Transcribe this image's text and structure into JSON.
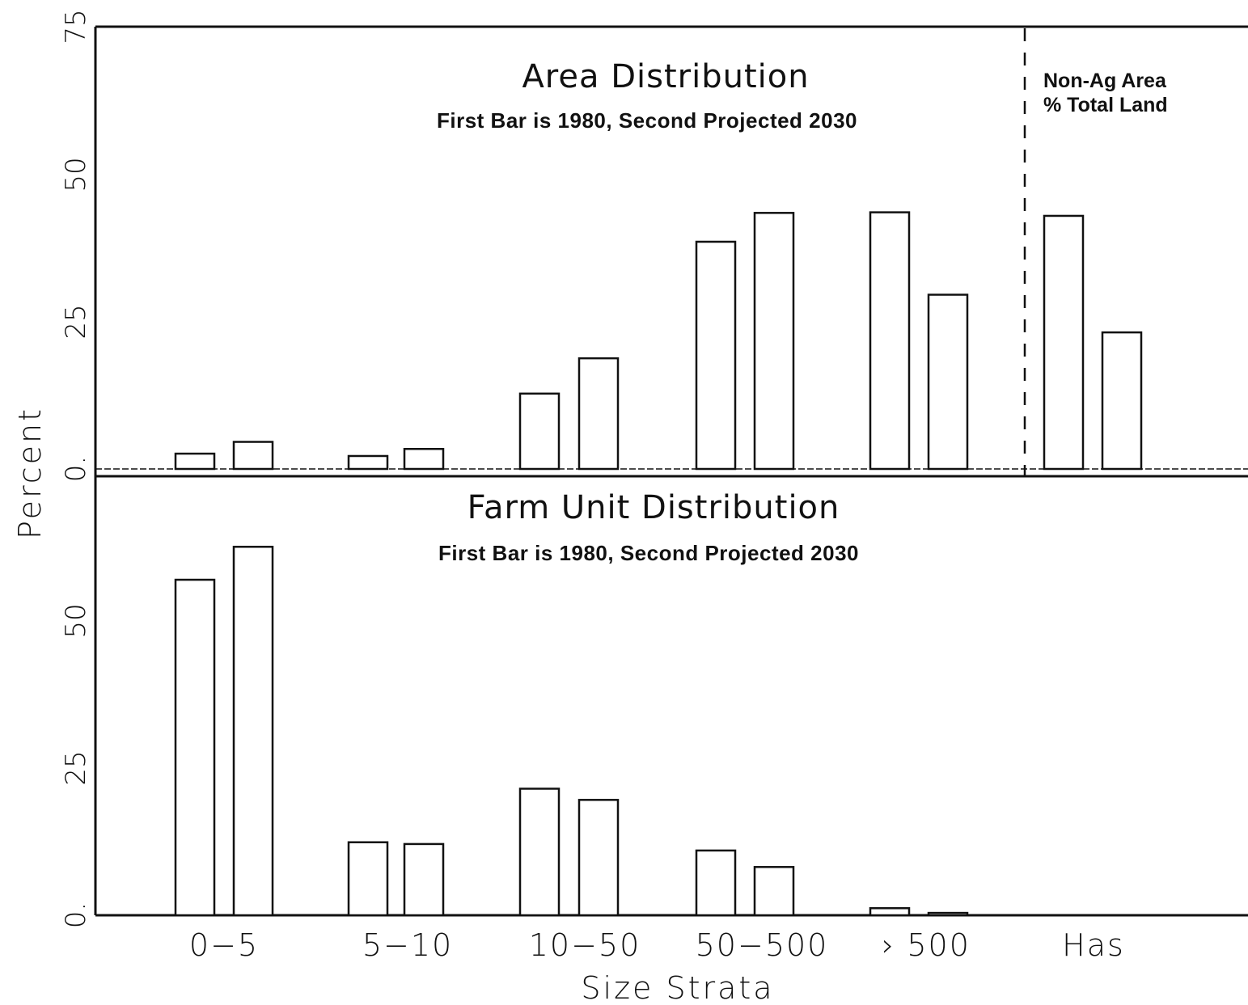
{
  "chart_data": [
    {
      "type": "bar",
      "title": "Area Distribution",
      "subtitle": "First Bar is 1980, Second Projected 2030",
      "ylabel": "Percent",
      "ylim": [
        0,
        75
      ],
      "yticks": [
        "0.",
        "25",
        "50",
        "75"
      ],
      "categories": [
        "0-5",
        "5-10",
        "10-50",
        "50-500",
        "> 500",
        "Has"
      ],
      "series": [
        {
          "values": [
            2.6,
            2.2,
            12.8,
            38.6,
            43.6,
            43.0
          ]
        },
        {
          "values": [
            4.6,
            3.4,
            18.8,
            43.5,
            29.6,
            23.2
          ]
        }
      ],
      "annotation": {
        "line1": "Non-Ag Area",
        "line2": "% Total Land"
      }
    },
    {
      "type": "bar",
      "title": "Farm Unit Distribution",
      "subtitle": "First Bar is 1980, Second Projected 2030",
      "ylabel": "Percent",
      "ylim": [
        0,
        75
      ],
      "yticks": [
        "0.",
        "25",
        "50"
      ],
      "categories": [
        "0-5",
        "5-10",
        "10-50",
        "50-500",
        "> 500"
      ],
      "series": [
        {
          "values": [
            57.0,
            12.4,
            21.5,
            11.0,
            1.2
          ]
        },
        {
          "values": [
            62.6,
            12.1,
            19.6,
            8.2,
            0.4
          ]
        }
      ],
      "xlabel": "Size Strata",
      "xticks": [
        "0−5",
        "5−10",
        "10−50",
        "50−500",
        "› 500",
        "Has"
      ]
    }
  ]
}
